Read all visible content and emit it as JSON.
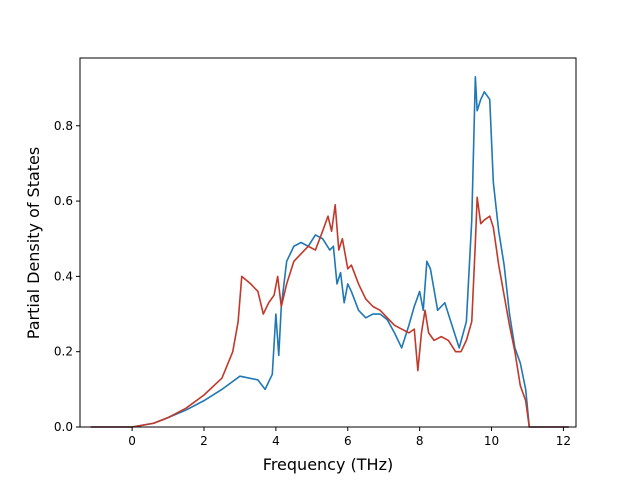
{
  "chart_data": {
    "type": "line",
    "title": "",
    "xlabel": "Frequency (THz)",
    "ylabel": "Partial Density of States",
    "xlim": [
      -1.45,
      12.35
    ],
    "ylim": [
      0.0,
      0.98
    ],
    "xticks": [
      0,
      2,
      4,
      6,
      8,
      10,
      12
    ],
    "yticks": [
      0.0,
      0.2,
      0.4,
      0.6,
      0.8
    ],
    "xtick_labels": [
      "0",
      "2",
      "4",
      "6",
      "8",
      "10",
      "12"
    ],
    "ytick_labels": [
      "0.0",
      "0.2",
      "0.4",
      "0.6",
      "0.8"
    ],
    "grid": false,
    "legend": "none",
    "series": [
      {
        "color": "#1f77b4",
        "x": [
          -1.15,
          0.0,
          0.3,
          0.6,
          1.0,
          1.5,
          2.0,
          2.5,
          3.0,
          3.5,
          3.7,
          3.9,
          4.0,
          4.08,
          4.15,
          4.3,
          4.5,
          4.7,
          4.9,
          5.1,
          5.3,
          5.5,
          5.6,
          5.7,
          5.8,
          5.9,
          6.0,
          6.1,
          6.3,
          6.5,
          6.7,
          6.9,
          7.1,
          7.3,
          7.5,
          7.7,
          7.85,
          8.0,
          8.1,
          8.2,
          8.3,
          8.5,
          8.7,
          8.9,
          9.1,
          9.3,
          9.45,
          9.55,
          9.6,
          9.7,
          9.8,
          9.95,
          10.05,
          10.2,
          10.35,
          10.5,
          10.65,
          10.8,
          10.95,
          11.05,
          11.2,
          12.15
        ],
        "y": [
          0.0,
          0.0,
          0.005,
          0.01,
          0.025,
          0.045,
          0.07,
          0.1,
          0.135,
          0.125,
          0.1,
          0.14,
          0.3,
          0.19,
          0.32,
          0.44,
          0.48,
          0.49,
          0.48,
          0.51,
          0.5,
          0.47,
          0.48,
          0.38,
          0.41,
          0.33,
          0.38,
          0.36,
          0.31,
          0.29,
          0.3,
          0.3,
          0.285,
          0.25,
          0.21,
          0.27,
          0.32,
          0.36,
          0.31,
          0.44,
          0.42,
          0.31,
          0.33,
          0.27,
          0.21,
          0.28,
          0.55,
          0.93,
          0.84,
          0.87,
          0.89,
          0.87,
          0.65,
          0.52,
          0.43,
          0.3,
          0.21,
          0.17,
          0.1,
          0.0,
          0.0,
          0.0
        ]
      },
      {
        "color": "#c0392b",
        "x": [
          -1.15,
          0.0,
          0.3,
          0.6,
          1.0,
          1.5,
          2.0,
          2.5,
          2.8,
          2.95,
          3.05,
          3.3,
          3.5,
          3.65,
          3.8,
          3.95,
          4.05,
          4.15,
          4.3,
          4.5,
          4.7,
          4.9,
          5.1,
          5.3,
          5.45,
          5.55,
          5.65,
          5.75,
          5.85,
          6.0,
          6.1,
          6.3,
          6.5,
          6.7,
          6.9,
          7.1,
          7.3,
          7.5,
          7.7,
          7.85,
          7.95,
          8.05,
          8.15,
          8.25,
          8.4,
          8.6,
          8.8,
          9.0,
          9.15,
          9.3,
          9.45,
          9.55,
          9.6,
          9.7,
          9.8,
          9.95,
          10.05,
          10.2,
          10.35,
          10.5,
          10.65,
          10.8,
          10.95,
          11.05,
          11.2,
          12.15
        ],
        "y": [
          0.0,
          0.0,
          0.005,
          0.01,
          0.025,
          0.05,
          0.085,
          0.13,
          0.2,
          0.28,
          0.4,
          0.38,
          0.36,
          0.3,
          0.33,
          0.35,
          0.4,
          0.32,
          0.38,
          0.44,
          0.46,
          0.48,
          0.47,
          0.52,
          0.56,
          0.52,
          0.59,
          0.47,
          0.5,
          0.42,
          0.43,
          0.38,
          0.34,
          0.32,
          0.31,
          0.29,
          0.27,
          0.26,
          0.25,
          0.26,
          0.15,
          0.25,
          0.31,
          0.25,
          0.23,
          0.24,
          0.23,
          0.2,
          0.2,
          0.23,
          0.28,
          0.49,
          0.61,
          0.54,
          0.55,
          0.56,
          0.53,
          0.43,
          0.35,
          0.27,
          0.2,
          0.11,
          0.07,
          0.0,
          0.0,
          0.0
        ]
      }
    ]
  }
}
